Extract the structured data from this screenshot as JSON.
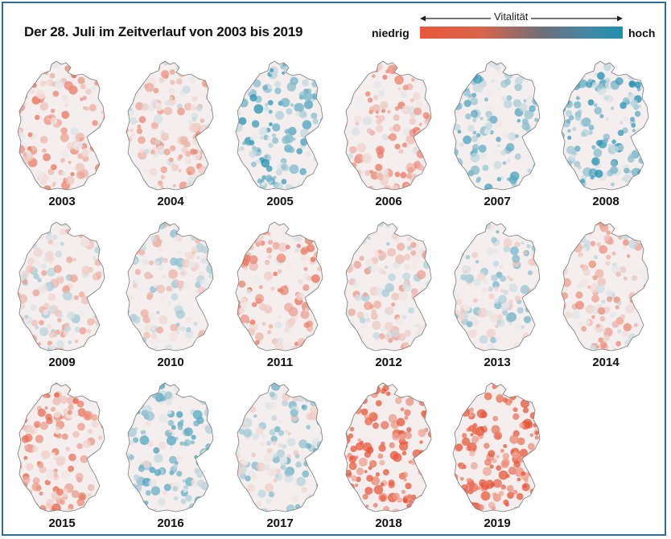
{
  "title": "Der 28. Juli im Zeitverlauf von 2003 bis 2019",
  "legend": {
    "label": "Vitalität",
    "low_label": "niedrig",
    "high_label": "hoch",
    "low_color": "#e8573a",
    "mid_color": "#6e6f7a",
    "high_color": "#1f8fb0"
  },
  "maps": [
    {
      "year": "2003",
      "vitality": -0.35
    },
    {
      "year": "2004",
      "vitality": -0.2
    },
    {
      "year": "2005",
      "vitality": 0.45
    },
    {
      "year": "2006",
      "vitality": -0.3
    },
    {
      "year": "2007",
      "vitality": 0.35
    },
    {
      "year": "2008",
      "vitality": 0.5
    },
    {
      "year": "2009",
      "vitality": -0.05
    },
    {
      "year": "2010",
      "vitality": 0.0
    },
    {
      "year": "2011",
      "vitality": -0.35
    },
    {
      "year": "2012",
      "vitality": -0.1
    },
    {
      "year": "2013",
      "vitality": 0.15
    },
    {
      "year": "2014",
      "vitality": -0.2
    },
    {
      "year": "2015",
      "vitality": -0.45
    },
    {
      "year": "2016",
      "vitality": 0.3
    },
    {
      "year": "2017",
      "vitality": 0.2
    },
    {
      "year": "2018",
      "vitality": -0.85
    },
    {
      "year": "2019",
      "vitality": -0.8
    }
  ]
}
